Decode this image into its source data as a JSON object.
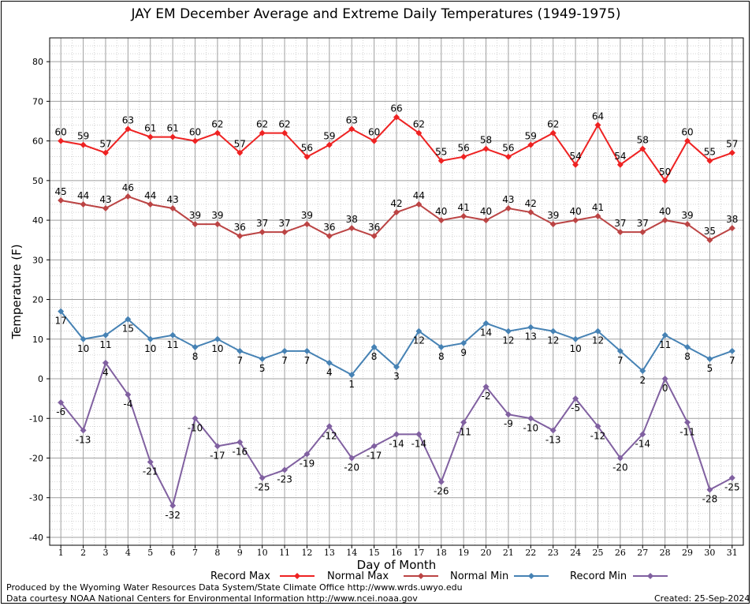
{
  "chart_data": {
    "type": "line",
    "title": "JAY EM December Average and Extreme Daily Temperatures (1949-1975)",
    "xlabel": "Day of Month",
    "ylabel": "Temperature (F)",
    "x": [
      1,
      2,
      3,
      4,
      5,
      6,
      7,
      8,
      9,
      10,
      11,
      12,
      13,
      14,
      15,
      16,
      17,
      18,
      19,
      20,
      21,
      22,
      23,
      24,
      25,
      26,
      27,
      28,
      29,
      30,
      31
    ],
    "ylim": [
      -42,
      86
    ],
    "yticks": [
      -40,
      -30,
      -20,
      -10,
      0,
      10,
      20,
      30,
      40,
      50,
      60,
      70,
      80
    ],
    "grid": true,
    "legend": "bottom",
    "series": [
      {
        "name": "Record Max",
        "color": "#ee2222",
        "values": [
          60,
          59,
          57,
          63,
          61,
          61,
          60,
          62,
          57,
          62,
          62,
          56,
          59,
          63,
          60,
          66,
          62,
          55,
          56,
          58,
          56,
          59,
          62,
          54,
          64,
          54,
          58,
          50,
          60,
          55,
          57
        ]
      },
      {
        "name": "Normal Max",
        "color": "#bb4444",
        "values": [
          45,
          44,
          43,
          46,
          44,
          43,
          39,
          39,
          36,
          37,
          37,
          39,
          36,
          38,
          36,
          42,
          44,
          40,
          41,
          40,
          43,
          42,
          39,
          40,
          41,
          37,
          37,
          40,
          39,
          35,
          38
        ]
      },
      {
        "name": "Normal Min",
        "color": "#4682b4",
        "values": [
          17,
          10,
          11,
          15,
          10,
          11,
          8,
          10,
          7,
          5,
          7,
          7,
          4,
          1,
          8,
          3,
          12,
          8,
          9,
          14,
          12,
          13,
          12,
          10,
          12,
          7,
          2,
          11,
          8,
          5,
          7
        ]
      },
      {
        "name": "Record Min",
        "color": "#8060a0",
        "values": [
          -6,
          -13,
          4,
          -4,
          -21,
          -32,
          -10,
          -17,
          -16,
          -25,
          -23,
          -19,
          -12,
          -20,
          -17,
          -14,
          -14,
          -26,
          -11,
          -2,
          -9,
          -10,
          -13,
          -5,
          -12,
          -20,
          -14,
          0,
          -11,
          -28,
          -25
        ]
      }
    ]
  },
  "footer": {
    "line1": "Produced by the Wyoming Water Resources Data System/State Climate Office http://www.wrds.uwyo.edu",
    "line2": "Data courtesy NOAA National Centers for Environmental Information http://www.ncei.noaa.gov",
    "created": "Created:  25-Sep-2024"
  }
}
